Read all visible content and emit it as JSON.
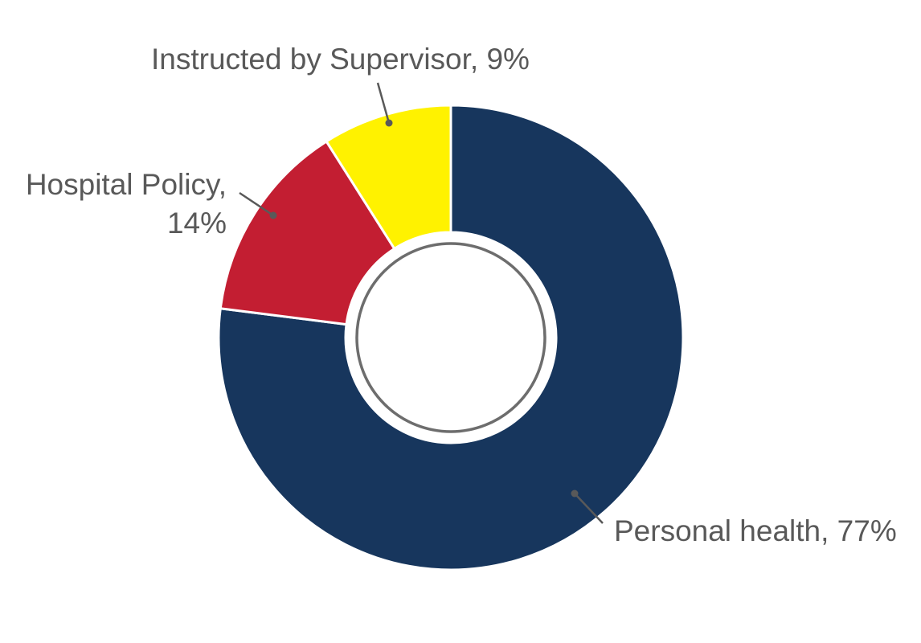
{
  "chart_data": {
    "type": "pie",
    "variant": "donut",
    "categories": [
      "Personal health",
      "Hospital Policy",
      "Instructed by Supervisor"
    ],
    "values": [
      77,
      14,
      9
    ],
    "unit": "%",
    "colors": [
      "#17365d",
      "#c31e32",
      "#fff200"
    ],
    "center_ring_color": "#6d6d6d",
    "label_color": "#595959",
    "slice_labels": [
      {
        "lines": [
          "Personal health, 77%"
        ]
      },
      {
        "lines": [
          "Hospital Policy,",
          "14%"
        ]
      },
      {
        "lines": [
          "Instructed by Supervisor, 9%"
        ]
      }
    ]
  }
}
